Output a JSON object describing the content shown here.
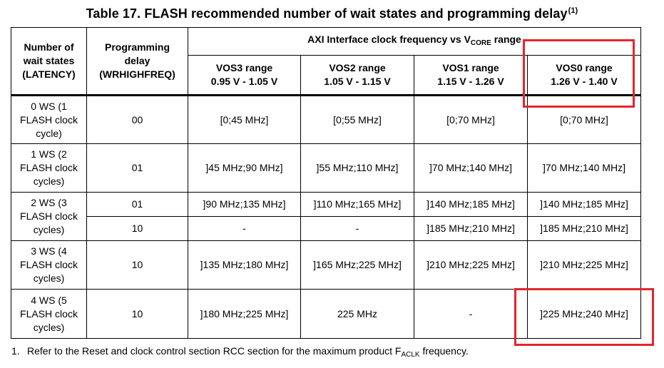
{
  "title": {
    "text": "Table 17. FLASH recommended number of wait states and programming delay",
    "footnote_ref": "(1)"
  },
  "header": {
    "col1": [
      "Number of",
      "wait states",
      "(LATENCY)"
    ],
    "col2": [
      "Programming",
      "delay",
      "(WRHIGHFREQ)"
    ],
    "group_prefix": "AXI Interface clock frequency vs V",
    "group_sub": "CORE",
    "group_suffix": " range",
    "ranges": [
      {
        "name": "VOS3 range",
        "voltage": "0.95 V - 1.05 V"
      },
      {
        "name": "VOS2 range",
        "voltage": "1.05 V - 1.15 V"
      },
      {
        "name": "VOS1 range",
        "voltage": "1.15 V - 1.26 V"
      },
      {
        "name": "VOS0 range",
        "voltage": "1.26 V - 1.40 V"
      }
    ]
  },
  "rows": [
    {
      "ws": [
        "0 WS (1",
        "FLASH clock",
        "cycle)"
      ],
      "delay": "00",
      "vals": [
        "[0;45 MHz]",
        "[0;55 MHz]",
        "[0;70 MHz]",
        "[0;70 MHz]"
      ]
    },
    {
      "ws": [
        "1 WS (2",
        "FLASH clock",
        "cycles)"
      ],
      "delay": "01",
      "vals": [
        "]45 MHz;90 MHz]",
        "]55 MHz;110 MHz]",
        "]70 MHz;140 MHz]",
        "]70 MHz;140 MHz]"
      ]
    },
    {
      "ws": [
        "2 WS (3",
        "FLASH clock",
        "cycles)"
      ],
      "delay": "01",
      "vals": [
        "]90 MHz;135 MHz]",
        "]110 MHz;165 MHz]",
        "]140 MHz;185 MHz]",
        "]140 MHz;185 MHz]"
      ],
      "sub": {
        "delay": "10",
        "vals": [
          "-",
          "-",
          "]185 MHz;210 MHz]",
          "]185 MHz;210 MHz]"
        ]
      }
    },
    {
      "ws": [
        "3 WS (4",
        "FLASH clock",
        "cycles)"
      ],
      "delay": "10",
      "vals": [
        "]135 MHz;180 MHz]",
        "]165 MHz;225 MHz]",
        "]210 MHz;225 MHz]",
        "]210 MHz;225 MHz]"
      ]
    },
    {
      "ws": [
        "4 WS (5",
        "FLASH clock",
        "cycles)"
      ],
      "delay": "10",
      "vals": [
        "]180 MHz;225 MHz]",
        "225 MHz",
        "-",
        "]225 MHz;240 MHz]"
      ]
    }
  ],
  "footnote": {
    "number": "1.",
    "text_before": "Refer to the Reset and clock control section RCC section for the maximum product F",
    "text_sub": "ACLK",
    "text_after": " frequency."
  },
  "highlight_color": "#e3262b"
}
